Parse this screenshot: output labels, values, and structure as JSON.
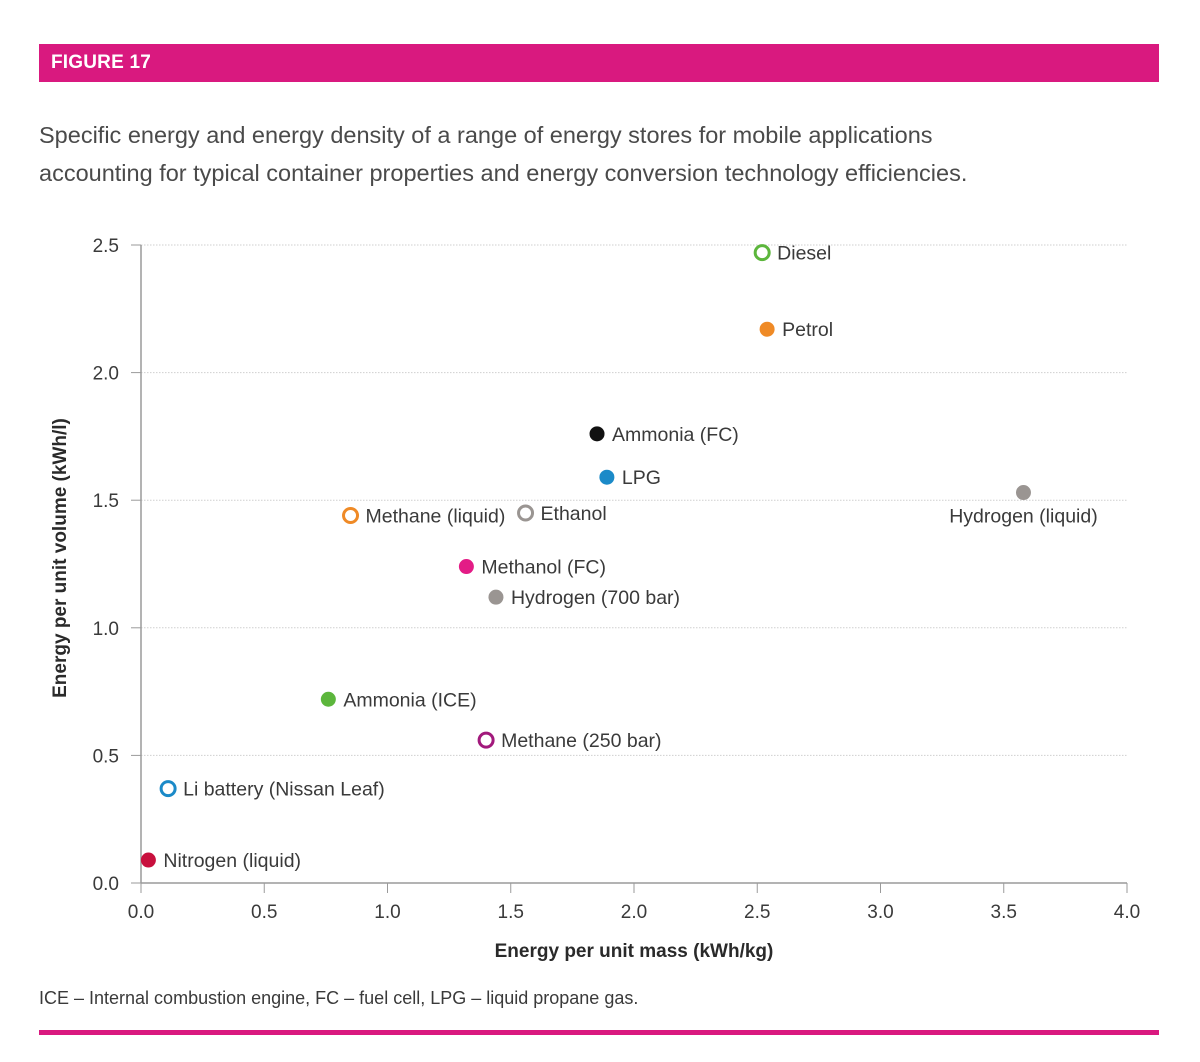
{
  "figure_label": "FIGURE 17",
  "caption_line1": "Specific energy and energy density of a range of energy stores for mobile applications",
  "caption_line2": "accounting for typical container properties and energy conversion technology efficiencies.",
  "footnote": "ICE – Internal combustion engine, FC – fuel cell, LPG – liquid propane gas.",
  "colors": {
    "accent": "#d9197f",
    "green": "#5cb63c",
    "orange": "#ef8a26",
    "black": "#111111",
    "blue": "#1b8ac8",
    "gray": "#9a9592",
    "pink": "#e31c86",
    "purple": "#a2197c",
    "crimson": "#c8103d"
  },
  "chart_data": {
    "type": "scatter",
    "xlabel": "Energy per unit mass (kWh/kg)",
    "ylabel": "Energy per unit volume (kWh/l)",
    "xlim": [
      0,
      4
    ],
    "ylim": [
      0,
      2.5
    ],
    "x_ticks": [
      "0.0",
      "0.5",
      "1.0",
      "1.5",
      "2.0",
      "2.5",
      "3.0",
      "3.5",
      "4.0"
    ],
    "y_ticks": [
      "0.0",
      "0.5",
      "1.0",
      "1.5",
      "2.0",
      "2.5"
    ],
    "grid": "horizontal",
    "points": [
      {
        "label": "Diesel",
        "x": 2.52,
        "y": 2.47,
        "color": "green",
        "hollow": true,
        "label_side": "right"
      },
      {
        "label": "Petrol",
        "x": 2.54,
        "y": 2.17,
        "color": "orange",
        "hollow": false,
        "label_side": "right"
      },
      {
        "label": "Ammonia (FC)",
        "x": 1.85,
        "y": 1.76,
        "color": "black",
        "hollow": false,
        "label_side": "right"
      },
      {
        "label": "LPG",
        "x": 1.89,
        "y": 1.59,
        "color": "blue",
        "hollow": false,
        "label_side": "right"
      },
      {
        "label": "Hydrogen (liquid)",
        "x": 3.58,
        "y": 1.53,
        "color": "gray",
        "hollow": false,
        "label_side": "below"
      },
      {
        "label": "Methane (liquid)",
        "x": 0.85,
        "y": 1.44,
        "color": "orange",
        "hollow": true,
        "label_side": "right"
      },
      {
        "label": "Ethanol",
        "x": 1.56,
        "y": 1.45,
        "color": "gray",
        "hollow": true,
        "label_side": "right"
      },
      {
        "label": "Methanol (FC)",
        "x": 1.32,
        "y": 1.24,
        "color": "pink",
        "hollow": false,
        "label_side": "right"
      },
      {
        "label": "Hydrogen (700 bar)",
        "x": 1.44,
        "y": 1.12,
        "color": "gray",
        "hollow": false,
        "label_side": "right"
      },
      {
        "label": "Ammonia (ICE)",
        "x": 0.76,
        "y": 0.72,
        "color": "green",
        "hollow": false,
        "label_side": "right"
      },
      {
        "label": "Methane (250 bar)",
        "x": 1.4,
        "y": 0.56,
        "color": "purple",
        "hollow": true,
        "label_side": "right"
      },
      {
        "label": "Li battery (Nissan Leaf)",
        "x": 0.11,
        "y": 0.37,
        "color": "blue",
        "hollow": true,
        "label_side": "right"
      },
      {
        "label": "Nitrogen (liquid)",
        "x": 0.03,
        "y": 0.09,
        "color": "crimson",
        "hollow": false,
        "label_side": "right"
      }
    ]
  }
}
